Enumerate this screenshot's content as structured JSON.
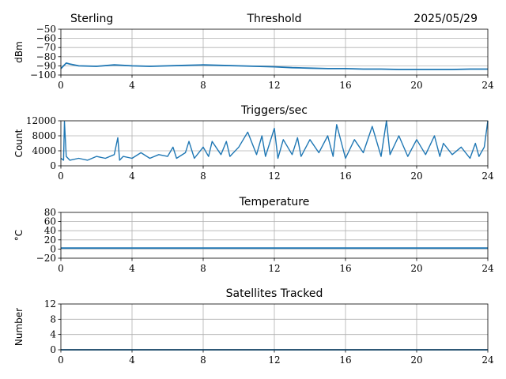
{
  "header": {
    "station": "Sterling",
    "date": "2025/05/29"
  },
  "colors": {
    "series": "#1f77b4",
    "grid": "#b0b0b0",
    "frame": "#000000"
  },
  "chart_data": [
    {
      "type": "line",
      "title": "Threshold",
      "ylabel": "dBm",
      "xlabel": "",
      "xlim": [
        0,
        24
      ],
      "ylim": [
        -100,
        -50
      ],
      "xticks": [
        "0",
        "4",
        "8",
        "12",
        "16",
        "20",
        "24"
      ],
      "yticks": [
        "−50",
        "−60",
        "−70",
        "−80",
        "−90",
        "−100"
      ],
      "ytick_values": [
        -50,
        -60,
        -70,
        -80,
        -90,
        -100
      ],
      "grid": true,
      "series": [
        {
          "x": [
            0,
            0.3,
            0.5,
            1,
            2,
            3,
            4,
            5,
            6,
            7,
            8,
            9,
            10,
            11,
            12,
            13,
            14,
            15,
            16,
            17,
            18,
            19,
            20,
            21,
            22,
            23,
            24
          ],
          "values": [
            -93,
            -87,
            -88,
            -90,
            -90.5,
            -89,
            -90,
            -90.5,
            -90,
            -89.5,
            -89,
            -89.5,
            -90,
            -90.5,
            -91,
            -92,
            -92.5,
            -93,
            -93,
            -93.5,
            -93.5,
            -94,
            -94,
            -94,
            -94,
            -93.5,
            -93.5
          ]
        }
      ]
    },
    {
      "type": "line",
      "title": "Triggers/sec",
      "ylabel": "Count",
      "xlabel": "",
      "xlim": [
        0,
        24
      ],
      "ylim": [
        0,
        12000
      ],
      "xticks": [
        "0",
        "4",
        "8",
        "12",
        "16",
        "20",
        "24"
      ],
      "yticks": [
        "0",
        "4000",
        "8000",
        "12000"
      ],
      "ytick_values": [
        0,
        4000,
        8000,
        12000
      ],
      "grid": true,
      "series": [
        {
          "x": [
            0,
            0.15,
            0.2,
            0.3,
            0.5,
            1,
            1.5,
            2,
            2.5,
            3,
            3.2,
            3.3,
            3.5,
            4,
            4.5,
            5,
            5.5,
            6,
            6.3,
            6.5,
            7,
            7.2,
            7.5,
            8,
            8.3,
            8.5,
            9,
            9.3,
            9.5,
            10,
            10.5,
            11,
            11.3,
            11.5,
            12,
            12.2,
            12.5,
            13,
            13.3,
            13.5,
            14,
            14.5,
            15,
            15.3,
            15.5,
            16,
            16.5,
            17,
            17.5,
            18,
            18.3,
            18.5,
            19,
            19.5,
            20,
            20.5,
            21,
            21.3,
            21.5,
            22,
            22.5,
            23,
            23.3,
            23.5,
            23.8,
            24
          ],
          "values": [
            2000,
            1500,
            11800,
            2500,
            1500,
            2000,
            1500,
            2500,
            2000,
            3000,
            7500,
            1500,
            2500,
            2000,
            3500,
            2000,
            3000,
            2500,
            5000,
            2000,
            3500,
            6500,
            2000,
            5000,
            2500,
            6500,
            3000,
            6500,
            2500,
            5000,
            9000,
            3000,
            8000,
            2500,
            10000,
            2000,
            7000,
            3000,
            7500,
            2500,
            7000,
            3500,
            8000,
            2500,
            11000,
            2000,
            7000,
            3500,
            10500,
            2500,
            12000,
            3000,
            8000,
            2500,
            7000,
            3000,
            8000,
            2500,
            6000,
            3000,
            5000,
            2000,
            6000,
            2500,
            5000,
            12000
          ]
        }
      ]
    },
    {
      "type": "line",
      "title": "Temperature",
      "ylabel": "°C",
      "xlabel": "",
      "xlim": [
        0,
        24
      ],
      "ylim": [
        -20,
        80
      ],
      "xticks": [
        "0",
        "4",
        "8",
        "12",
        "16",
        "20",
        "24"
      ],
      "yticks": [
        "80",
        "60",
        "40",
        "20",
        "0",
        "−20"
      ],
      "ytick_values": [
        80,
        60,
        40,
        20,
        0,
        -20
      ],
      "grid": true,
      "series": [
        {
          "x": [
            0,
            24
          ],
          "values": [
            2,
            2
          ]
        }
      ]
    },
    {
      "type": "line",
      "title": "Satellites Tracked",
      "ylabel": "Number",
      "xlabel": "",
      "xlim": [
        0,
        24
      ],
      "ylim": [
        0,
        12
      ],
      "xticks": [
        "0",
        "4",
        "8",
        "12",
        "16",
        "20",
        "24"
      ],
      "yticks": [
        "12",
        "8",
        "4",
        "0"
      ],
      "ytick_values": [
        12,
        8,
        4,
        0
      ],
      "grid": true,
      "series": [
        {
          "x": [
            0,
            24
          ],
          "values": [
            0,
            0
          ]
        }
      ]
    }
  ]
}
